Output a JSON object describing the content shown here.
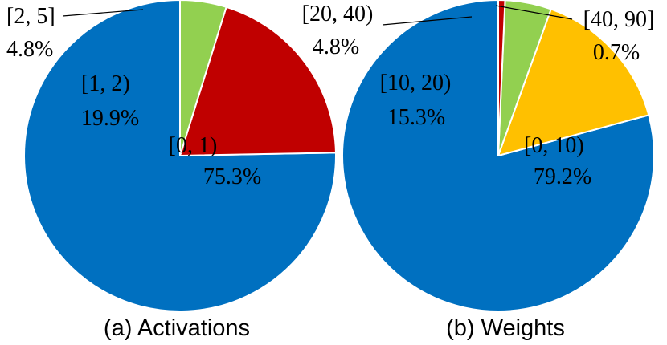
{
  "chart_data": [
    {
      "type": "pie",
      "title": "(a) Activations",
      "slices": [
        {
          "label": "[0, 1)",
          "value": 75.3,
          "pct_text": "75.3%",
          "color": "#0070C0"
        },
        {
          "label": "[1, 2)",
          "value": 19.9,
          "pct_text": "19.9%",
          "color": "#C00000"
        },
        {
          "label": "[2, 5]",
          "value": 4.8,
          "pct_text": "4.8%",
          "color": "#92D050"
        }
      ]
    },
    {
      "type": "pie",
      "title": "(b) Weights",
      "slices": [
        {
          "label": "[0, 10)",
          "value": 79.2,
          "pct_text": "79.2%",
          "color": "#0070C0"
        },
        {
          "label": "[10, 20)",
          "value": 15.3,
          "pct_text": "15.3%",
          "color": "#FFC000"
        },
        {
          "label": "[20, 40)",
          "value": 4.8,
          "pct_text": "4.8%",
          "color": "#92D050"
        },
        {
          "label": "[40, 90]",
          "value": 0.7,
          "pct_text": "0.7%",
          "color": "#C00000"
        }
      ]
    }
  ]
}
